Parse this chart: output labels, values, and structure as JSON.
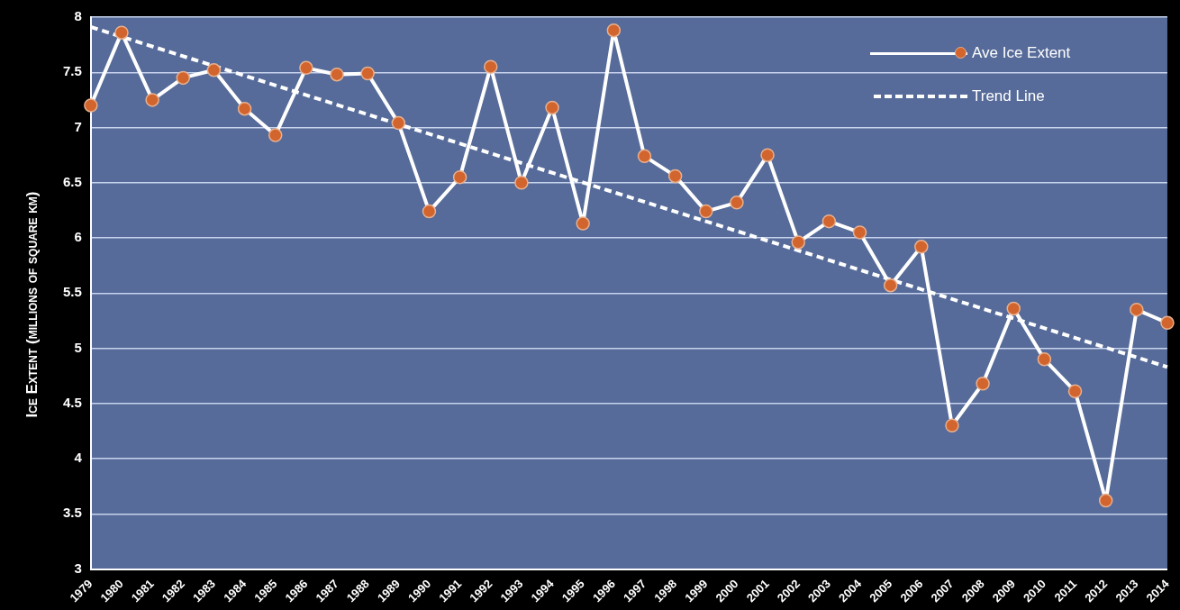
{
  "chart_data": {
    "type": "line",
    "ylabel": "Ice Extent (millions of square km)",
    "categories": [
      "1979",
      "1980",
      "1981",
      "1982",
      "1983",
      "1984",
      "1985",
      "1986",
      "1987",
      "1988",
      "1989",
      "1990",
      "1991",
      "1992",
      "1993",
      "1994",
      "1995",
      "1996",
      "1997",
      "1998",
      "1999",
      "2000",
      "2001",
      "2002",
      "2003",
      "2004",
      "2005",
      "2006",
      "2007",
      "2008",
      "2009",
      "2010",
      "2011",
      "2012",
      "2013",
      "2014"
    ],
    "series": [
      {
        "name": "Ave Ice Extent",
        "color": "#d2642d",
        "marker": "circle",
        "line_style": "solid",
        "values": [
          7.2,
          7.86,
          7.25,
          7.45,
          7.52,
          7.17,
          6.93,
          7.54,
          7.48,
          7.49,
          7.04,
          6.24,
          6.55,
          7.55,
          6.5,
          7.18,
          6.13,
          7.88,
          6.74,
          6.56,
          6.24,
          6.32,
          6.75,
          5.96,
          6.15,
          6.05,
          5.57,
          5.92,
          4.3,
          4.68,
          5.36,
          4.9,
          4.61,
          3.62,
          5.35,
          5.23
        ]
      },
      {
        "name": "Trend Line",
        "type": "line",
        "color": "#ffffff",
        "marker": "none",
        "line_style": "dashed",
        "values": [
          7.91,
          null,
          null,
          null,
          null,
          null,
          null,
          null,
          null,
          null,
          null,
          null,
          null,
          null,
          null,
          null,
          null,
          null,
          null,
          null,
          null,
          null,
          null,
          null,
          null,
          null,
          null,
          null,
          null,
          null,
          null,
          null,
          null,
          null,
          null,
          4.83
        ]
      }
    ],
    "ylim": [
      3,
      8
    ],
    "yticks": [
      3,
      3.5,
      4,
      4.5,
      5,
      5.5,
      6,
      6.5,
      7,
      7.5,
      8
    ],
    "grid": "y",
    "legend": "top right"
  }
}
